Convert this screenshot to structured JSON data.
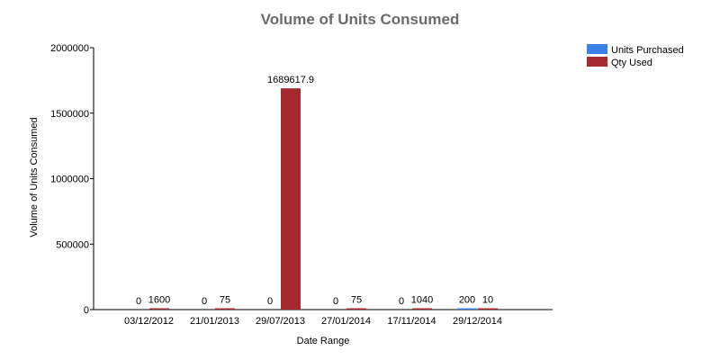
{
  "chart_data": {
    "type": "bar",
    "title": "Volume of Units Consumed",
    "xlabel": "Date Range",
    "ylabel": "Volume of Units Consumed",
    "categories": [
      "03/12/2012",
      "21/01/2013",
      "29/07/2013",
      "27/01/2014",
      "17/11/2014",
      "29/12/2014"
    ],
    "series": [
      {
        "name": "Units Purchased",
        "color": "#3b82e8",
        "values": [
          0,
          0,
          0,
          0,
          0,
          200
        ],
        "labels": [
          "0",
          "0",
          "0",
          "0",
          "0",
          "200"
        ]
      },
      {
        "name": "Qty Used",
        "color": "#a52a2f",
        "values": [
          1600,
          75,
          1689617.9,
          75,
          1040,
          10
        ],
        "labels": [
          "1600",
          "75",
          "1689617.9",
          "75",
          "1040",
          "10"
        ]
      }
    ],
    "ylim": [
      0,
      2000000
    ],
    "yticks": [
      0,
      500000,
      1000000,
      1500000,
      2000000
    ],
    "ytick_labels": [
      "0",
      "500000",
      "1000000",
      "1500000",
      "2000000"
    ],
    "grid": false,
    "legend_position": "top-right"
  }
}
